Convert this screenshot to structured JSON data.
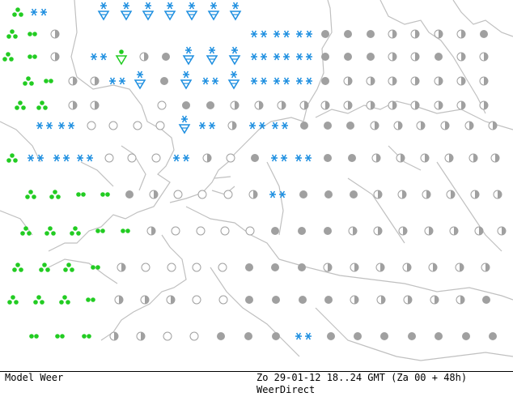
{
  "footer": {
    "model_label": "Model Weer",
    "valid_time": "Zo 29-01-12 18..24 GMT (Za 00 + 48h)",
    "source": "WeerDirect"
  },
  "colors": {
    "coastline": "#c0c0c0",
    "snow": "#1e8fe0",
    "rain": "#22cc22",
    "cloud_grey": "#a0a0a0",
    "frame": "#000000"
  },
  "legend_symbols": [
    "snow-showers-icon",
    "snow-icon",
    "rain-icon",
    "rain-shower-icon",
    "overcast-icon",
    "half-cloudy-icon",
    "clear-icon"
  ]
}
